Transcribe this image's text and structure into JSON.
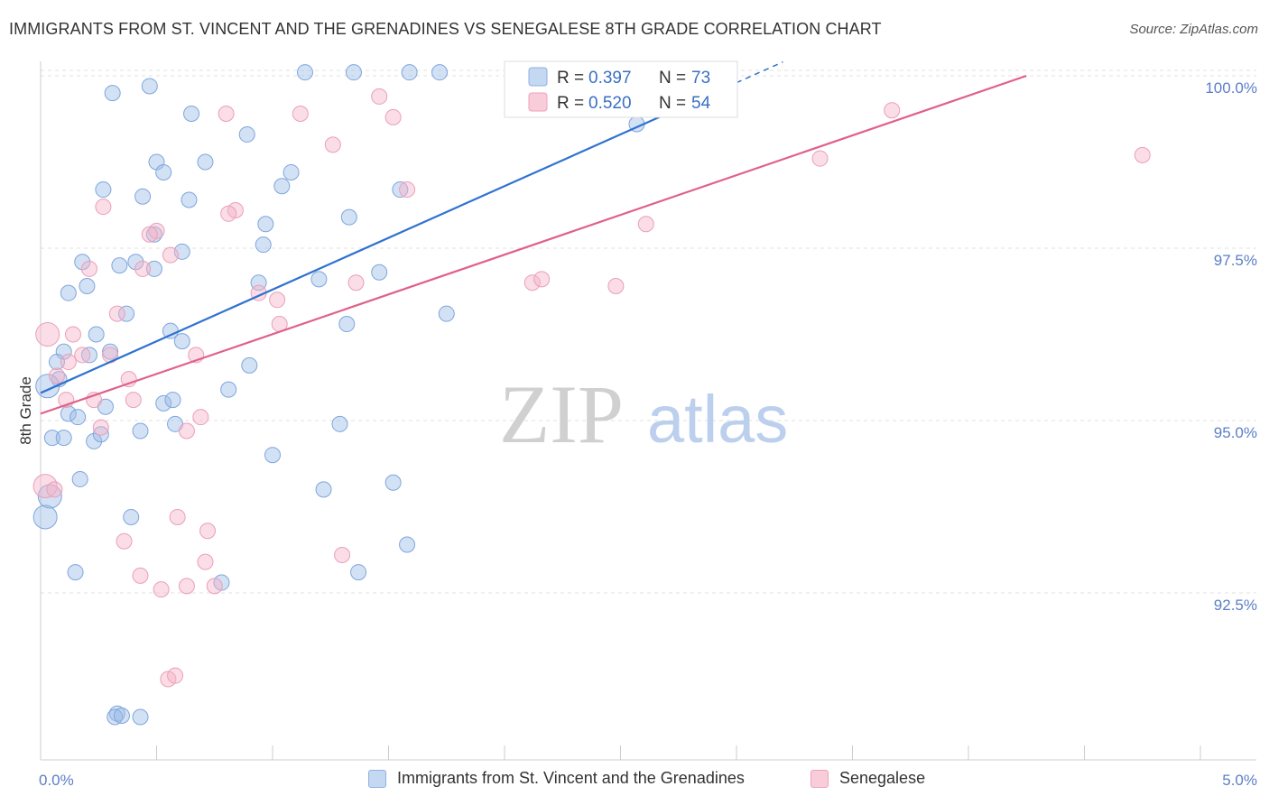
{
  "header": {
    "title": "IMMIGRANTS FROM ST. VINCENT AND THE GRENADINES VS SENEGALESE 8TH GRADE CORRELATION CHART",
    "source": "Source: ZipAtlas.com"
  },
  "watermark": {
    "zip": "ZIP",
    "atlas": "atlas"
  },
  "legend": {
    "r_label": "R =",
    "n_label": "N =",
    "rows": [
      {
        "r": "0.397",
        "n": "73"
      },
      {
        "r": "0.520",
        "n": "54"
      }
    ]
  },
  "bottom_legend": {
    "series1": "Immigrants from St. Vincent and the Grenadines",
    "series2": "Senegalese"
  },
  "chart_data": {
    "type": "scatter",
    "title": "IMMIGRANTS FROM ST. VINCENT AND THE GRENADINES VS SENEGALESE 8TH GRADE CORRELATION CHART",
    "xlabel": "",
    "ylabel": "8th Grade",
    "xlim": [
      0,
      5.0
    ],
    "ylim": [
      89.9,
      100.5
    ],
    "x_tick_labels": [
      "0.0%",
      "5.0%"
    ],
    "y_tick_labels": [
      "100.0%",
      "97.5%",
      "95.0%",
      "92.5%"
    ],
    "y_ticks": [
      100.0,
      97.5,
      95.0,
      92.5
    ],
    "grid": "horizontal dashed",
    "legend_position": "top-center",
    "colors": {
      "series1": "#9dbde8",
      "series1_line": "#2f72d0",
      "series2": "#f4b3c8",
      "series2_line": "#e0608a"
    },
    "series": [
      {
        "name": "Immigrants from St. Vincent and the Grenadines",
        "r": 0.397,
        "n": 73,
        "trend": {
          "x0": 0.0,
          "y0": 95.4,
          "x1": 3.2,
          "y1": 100.2,
          "solid_until": 3.0
        },
        "points": [
          [
            0.31,
            99.75
          ],
          [
            0.47,
            99.85
          ],
          [
            1.14,
            100.05
          ],
          [
            1.35,
            100.05
          ],
          [
            1.59,
            100.05
          ],
          [
            1.72,
            100.05
          ],
          [
            0.65,
            99.45
          ],
          [
            0.89,
            99.15
          ],
          [
            2.57,
            99.3
          ],
          [
            0.5,
            98.75
          ],
          [
            0.71,
            98.75
          ],
          [
            0.53,
            98.6
          ],
          [
            1.08,
            98.6
          ],
          [
            0.27,
            98.35
          ],
          [
            0.44,
            98.25
          ],
          [
            1.04,
            98.4
          ],
          [
            0.64,
            98.2
          ],
          [
            1.55,
            98.35
          ],
          [
            1.33,
            97.95
          ],
          [
            0.97,
            97.85
          ],
          [
            0.49,
            97.7
          ],
          [
            0.61,
            97.45
          ],
          [
            0.96,
            97.55
          ],
          [
            0.18,
            97.3
          ],
          [
            0.34,
            97.25
          ],
          [
            0.41,
            97.3
          ],
          [
            0.49,
            97.2
          ],
          [
            0.94,
            97.0
          ],
          [
            1.2,
            97.05
          ],
          [
            1.46,
            97.15
          ],
          [
            0.2,
            96.95
          ],
          [
            0.12,
            96.85
          ],
          [
            0.37,
            96.55
          ],
          [
            0.24,
            96.25
          ],
          [
            0.56,
            96.3
          ],
          [
            0.61,
            96.15
          ],
          [
            1.32,
            96.4
          ],
          [
            1.75,
            96.55
          ],
          [
            0.1,
            96.0
          ],
          [
            0.21,
            95.95
          ],
          [
            0.3,
            96.0
          ],
          [
            0.07,
            95.85
          ],
          [
            0.9,
            95.8
          ],
          [
            0.08,
            95.6
          ],
          [
            0.03,
            95.5
          ],
          [
            0.81,
            95.45
          ],
          [
            0.53,
            95.25
          ],
          [
            0.57,
            95.3
          ],
          [
            0.28,
            95.2
          ],
          [
            0.12,
            95.1
          ],
          [
            0.16,
            95.05
          ],
          [
            0.43,
            94.85
          ],
          [
            0.58,
            94.95
          ],
          [
            1.29,
            94.95
          ],
          [
            0.05,
            94.75
          ],
          [
            0.1,
            94.75
          ],
          [
            0.23,
            94.7
          ],
          [
            0.26,
            94.8
          ],
          [
            1.0,
            94.5
          ],
          [
            0.17,
            94.15
          ],
          [
            1.22,
            94.0
          ],
          [
            1.52,
            94.1
          ],
          [
            0.04,
            93.9
          ],
          [
            0.02,
            93.6
          ],
          [
            0.39,
            93.6
          ],
          [
            1.58,
            93.2
          ],
          [
            0.15,
            92.8
          ],
          [
            1.37,
            92.8
          ],
          [
            0.78,
            92.65
          ],
          [
            0.33,
            90.75
          ],
          [
            0.32,
            90.7
          ],
          [
            0.35,
            90.72
          ],
          [
            0.43,
            90.7
          ]
        ]
      },
      {
        "name": "Senegalese",
        "r": 0.52,
        "n": 54,
        "trend": {
          "x0": 0.0,
          "y0": 95.1,
          "x1": 4.25,
          "y1": 100.0
        },
        "points": [
          [
            2.72,
            100.0
          ],
          [
            1.46,
            99.7
          ],
          [
            0.8,
            99.45
          ],
          [
            1.12,
            99.45
          ],
          [
            1.52,
            99.4
          ],
          [
            3.67,
            99.5
          ],
          [
            1.26,
            99.0
          ],
          [
            3.36,
            98.8
          ],
          [
            4.75,
            98.85
          ],
          [
            1.58,
            98.35
          ],
          [
            0.84,
            98.05
          ],
          [
            0.27,
            98.1
          ],
          [
            0.81,
            98.0
          ],
          [
            2.61,
            97.85
          ],
          [
            0.5,
            97.75
          ],
          [
            0.47,
            97.7
          ],
          [
            0.56,
            97.4
          ],
          [
            0.21,
            97.2
          ],
          [
            0.44,
            97.2
          ],
          [
            2.12,
            97.0
          ],
          [
            2.16,
            97.05
          ],
          [
            1.36,
            97.0
          ],
          [
            2.48,
            96.95
          ],
          [
            0.94,
            96.85
          ],
          [
            1.02,
            96.75
          ],
          [
            0.33,
            96.55
          ],
          [
            1.03,
            96.4
          ],
          [
            0.03,
            96.25
          ],
          [
            0.14,
            96.25
          ],
          [
            0.18,
            95.95
          ],
          [
            0.3,
            95.95
          ],
          [
            0.67,
            95.95
          ],
          [
            0.12,
            95.85
          ],
          [
            0.07,
            95.65
          ],
          [
            0.38,
            95.6
          ],
          [
            0.11,
            95.3
          ],
          [
            0.23,
            95.3
          ],
          [
            0.4,
            95.3
          ],
          [
            0.69,
            95.05
          ],
          [
            0.26,
            94.9
          ],
          [
            0.63,
            94.85
          ],
          [
            0.02,
            94.05
          ],
          [
            0.06,
            94.0
          ],
          [
            0.59,
            93.6
          ],
          [
            0.72,
            93.4
          ],
          [
            0.36,
            93.25
          ],
          [
            0.71,
            92.95
          ],
          [
            1.3,
            93.05
          ],
          [
            0.43,
            92.75
          ],
          [
            0.63,
            92.6
          ],
          [
            0.75,
            92.6
          ],
          [
            0.52,
            92.55
          ],
          [
            0.55,
            91.25
          ],
          [
            0.58,
            91.3
          ]
        ]
      }
    ]
  }
}
